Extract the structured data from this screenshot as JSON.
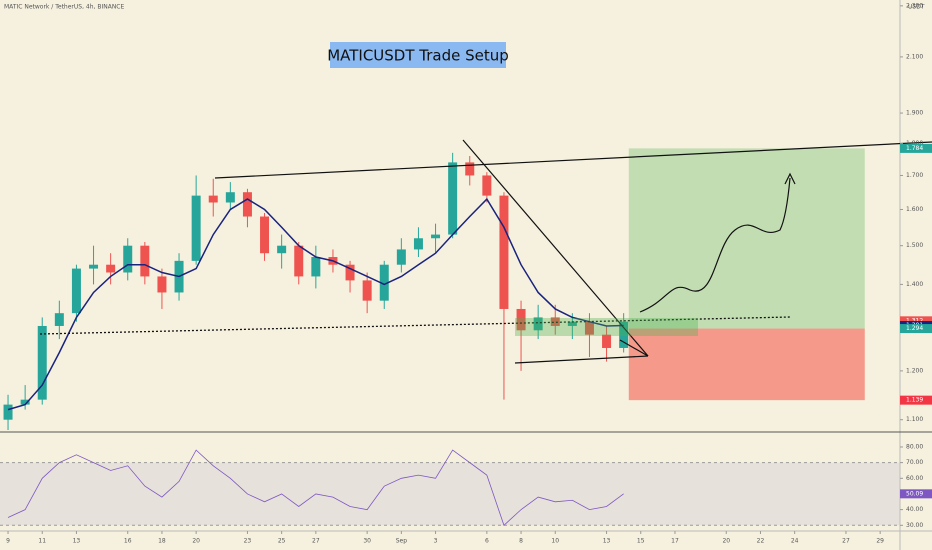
{
  "chart_data": {
    "type": "candlestick",
    "header": "MATIC Network / TetherUS, 4h, BINANCE",
    "currency": "USDT",
    "title": "MATICUSDT Trade Setup",
    "log_scale": true,
    "grid": false,
    "up_color": "#26a69a",
    "down_color": "#ef5350",
    "xlim": [
      -0.47,
      52.16
    ],
    "xticks": [
      {
        "value": 0,
        "label": "9"
      },
      {
        "value": 2,
        "label": "11"
      },
      {
        "value": 4,
        "label": "13"
      },
      {
        "value": 7,
        "label": "16"
      },
      {
        "value": 9,
        "label": "18"
      },
      {
        "value": 11,
        "label": "20"
      },
      {
        "value": 14,
        "label": "23"
      },
      {
        "value": 16,
        "label": "25"
      },
      {
        "value": 18,
        "label": "27"
      },
      {
        "value": 21,
        "label": "30"
      },
      {
        "value": 23,
        "label": "Sep"
      },
      {
        "value": 25,
        "label": "3"
      },
      {
        "value": 28,
        "label": "6"
      },
      {
        "value": 30,
        "label": "8"
      },
      {
        "value": 32,
        "label": "10"
      },
      {
        "value": 35,
        "label": "13"
      },
      {
        "value": 37,
        "label": "15"
      },
      {
        "value": 39,
        "label": "17"
      },
      {
        "value": 42,
        "label": "20"
      },
      {
        "value": 44,
        "label": "22"
      },
      {
        "value": 46,
        "label": "24"
      },
      {
        "value": 49,
        "label": "27"
      },
      {
        "value": 51,
        "label": "29"
      }
    ],
    "ylim": [
      1.08,
      2.32
    ],
    "yticks": [
      {
        "value": 2.3,
        "label": "2.300"
      },
      {
        "value": 2.1,
        "label": "2.100"
      },
      {
        "value": 1.9,
        "label": "1.900"
      },
      {
        "value": 1.8,
        "label": "1.800"
      },
      {
        "value": 1.7,
        "label": "1.700"
      },
      {
        "value": 1.6,
        "label": "1.600"
      },
      {
        "value": 1.5,
        "label": "1.500"
      },
      {
        "value": 1.4,
        "label": "1.400"
      },
      {
        "value": 1.2,
        "label": "1.200"
      },
      {
        "value": 1.1,
        "label": "1.100"
      }
    ],
    "open": [
      1.1,
      1.13,
      1.14,
      1.3,
      1.33,
      1.44,
      1.45,
      1.43,
      1.5,
      1.42,
      1.38,
      1.46,
      1.64,
      1.62,
      1.65,
      1.58,
      1.48,
      1.5,
      1.42,
      1.47,
      1.45,
      1.41,
      1.36,
      1.45,
      1.49,
      1.52,
      1.53,
      1.74,
      1.7,
      1.64,
      1.34,
      1.29,
      1.32,
      1.3,
      1.31,
      1.28,
      1.25
    ],
    "high": [
      1.15,
      1.17,
      1.32,
      1.36,
      1.45,
      1.5,
      1.48,
      1.52,
      1.51,
      1.44,
      1.48,
      1.7,
      1.69,
      1.68,
      1.66,
      1.59,
      1.53,
      1.51,
      1.5,
      1.49,
      1.46,
      1.43,
      1.46,
      1.52,
      1.55,
      1.56,
      1.77,
      1.76,
      1.71,
      1.65,
      1.36,
      1.35,
      1.35,
      1.33,
      1.33,
      1.3,
      1.33
    ],
    "low": [
      1.08,
      1.12,
      1.13,
      1.27,
      1.31,
      1.4,
      1.4,
      1.41,
      1.4,
      1.34,
      1.36,
      1.45,
      1.58,
      1.6,
      1.55,
      1.46,
      1.44,
      1.4,
      1.39,
      1.43,
      1.38,
      1.33,
      1.34,
      1.43,
      1.47,
      1.48,
      1.52,
      1.67,
      1.62,
      1.14,
      1.2,
      1.27,
      1.28,
      1.27,
      1.23,
      1.22,
      1.24
    ],
    "close": [
      1.13,
      1.14,
      1.3,
      1.33,
      1.44,
      1.45,
      1.43,
      1.5,
      1.42,
      1.38,
      1.46,
      1.64,
      1.62,
      1.65,
      1.58,
      1.48,
      1.5,
      1.42,
      1.47,
      1.45,
      1.41,
      1.36,
      1.45,
      1.49,
      1.52,
      1.53,
      1.74,
      1.7,
      1.64,
      1.34,
      1.29,
      1.32,
      1.3,
      1.31,
      1.28,
      1.25,
      1.31
    ],
    "moving_average": {
      "color": "#1a237e",
      "values": [
        1.12,
        1.13,
        1.17,
        1.24,
        1.32,
        1.38,
        1.42,
        1.45,
        1.45,
        1.43,
        1.42,
        1.44,
        1.53,
        1.6,
        1.63,
        1.6,
        1.55,
        1.5,
        1.47,
        1.46,
        1.44,
        1.42,
        1.4,
        1.42,
        1.45,
        1.48,
        1.53,
        1.58,
        1.63,
        1.55,
        1.45,
        1.38,
        1.34,
        1.32,
        1.31,
        1.3,
        1.301
      ]
    },
    "price_labels": [
      {
        "value": 1.784,
        "color": "#26a69a"
      },
      {
        "value": 1.312,
        "color": "#ef5350"
      },
      {
        "value": 1.301,
        "color": "#1a237e"
      },
      {
        "value": 1.294,
        "color": "#26a69a"
      },
      {
        "value": 1.139,
        "color": "#f23645"
      }
    ],
    "position": {
      "target": 1.784,
      "entry": 1.294,
      "stop": 1.139
    },
    "rsi": {
      "color": "#7e57c2",
      "ylim": [
        27,
        87
      ],
      "yticks": [
        {
          "value": 80,
          "label": "80.00"
        },
        {
          "value": 70,
          "label": "70.00"
        },
        {
          "value": 60,
          "label": "60.00"
        },
        {
          "value": 40,
          "label": "40.00"
        },
        {
          "value": 30,
          "label": "30.00"
        }
      ],
      "values": [
        35,
        40,
        60,
        70,
        75,
        70,
        65,
        68,
        55,
        48,
        58,
        78,
        68,
        60,
        50,
        45,
        50,
        42,
        50,
        48,
        42,
        40,
        55,
        60,
        62,
        60,
        78,
        70,
        62,
        30,
        40,
        48,
        45,
        46,
        40,
        42,
        50.09
      ]
    }
  }
}
